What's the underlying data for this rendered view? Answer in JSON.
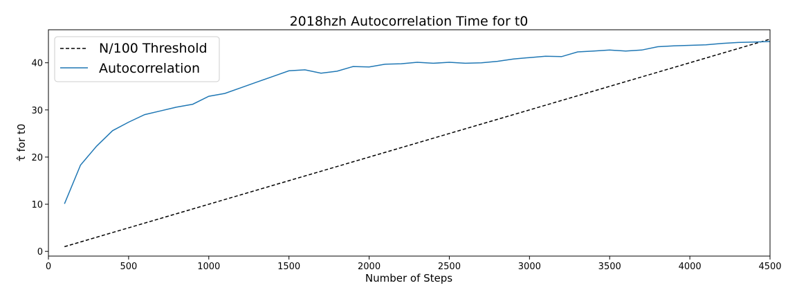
{
  "chart_data": {
    "type": "line",
    "title": "2018hzh Autocorrelation Time for t0",
    "xlabel": "Number of Steps",
    "ylabel": "τ̂ for t0",
    "xlim": [
      0,
      4500
    ],
    "ylim": [
      -1,
      47
    ],
    "xticks": [
      0,
      500,
      1000,
      1500,
      2000,
      2500,
      3000,
      3500,
      4000,
      4500
    ],
    "yticks": [
      0,
      10,
      20,
      30,
      40
    ],
    "grid": false,
    "legend": {
      "placement": "top-left"
    },
    "series": [
      {
        "name": "N/100 Threshold",
        "style": "dashed",
        "color": "#000000",
        "x": [
          100,
          4500
        ],
        "y": [
          1,
          45
        ]
      },
      {
        "name": "Autocorrelation",
        "style": "solid",
        "color": "#1f77b4",
        "x": [
          100,
          200,
          300,
          400,
          500,
          600,
          700,
          800,
          900,
          1000,
          1100,
          1200,
          1300,
          1400,
          1500,
          1600,
          1700,
          1800,
          1900,
          2000,
          2100,
          2200,
          2300,
          2400,
          2500,
          2600,
          2700,
          2800,
          2900,
          3000,
          3100,
          3200,
          3300,
          3400,
          3500,
          3600,
          3700,
          3800,
          3900,
          4000,
          4100,
          4200,
          4300,
          4400,
          4500
        ],
        "y": [
          10.1,
          18.3,
          22.3,
          25.6,
          27.4,
          29.0,
          29.8,
          30.6,
          31.2,
          32.9,
          33.5,
          34.7,
          35.9,
          37.1,
          38.3,
          38.5,
          37.8,
          38.2,
          39.2,
          39.1,
          39.7,
          39.8,
          40.1,
          39.9,
          40.1,
          39.9,
          40.0,
          40.3,
          40.8,
          41.1,
          41.4,
          41.3,
          42.3,
          42.5,
          42.7,
          42.5,
          42.7,
          43.4,
          43.6,
          43.7,
          43.8,
          44.1,
          44.3,
          44.4,
          44.5
        ]
      }
    ]
  }
}
